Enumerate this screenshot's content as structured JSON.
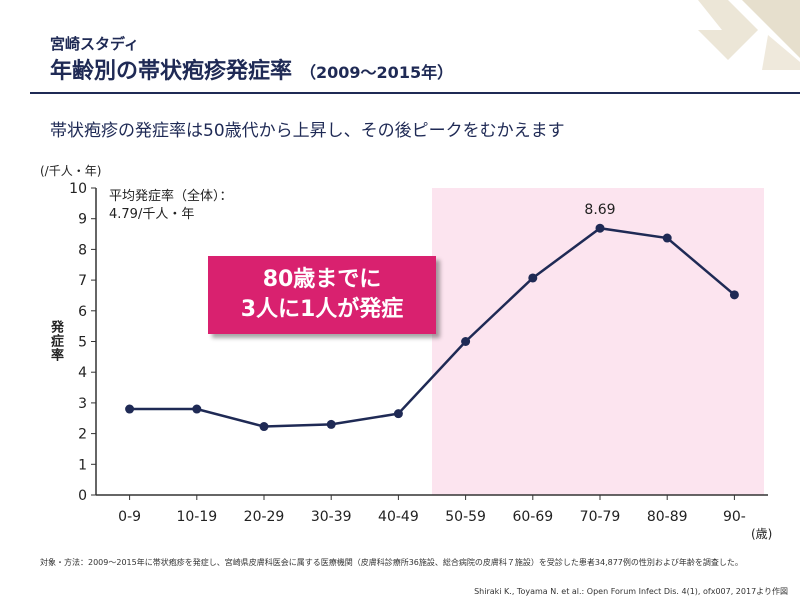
{
  "header": {
    "subtitle": "宮崎スタディ",
    "title": "年齢別の帯状疱疹発症率",
    "title_sub": "（2009～2015年）"
  },
  "lead_text": "帯状疱疹の発症率は50歳代から上昇し、その後ピークをむかえます",
  "callout": {
    "line1": "80歳までに",
    "line2": "3人に1人が発症",
    "color": "#d9216f"
  },
  "average_note": {
    "line1": "平均発症率（全体）：",
    "line2": "4.79/千人・年"
  },
  "footnote": "対象・方法：2009～2015年に帯状疱疹を発症し、宮崎県皮膚科医会に属する医療機関（皮膚科診療所36施設、総合病院の皮膚科７施設）を受診した患者34,877例の性別および年齢を調査した。",
  "citation": "Shiraki K., Toyama N. et al.: Open Forum Infect Dis. 4(1), ofx007, 2017より作図",
  "colors": {
    "navy": "#1f2a55",
    "highlight": "#fce4ef",
    "accent": "#d9216f"
  },
  "chart_data": {
    "type": "line",
    "categories": [
      "0-9",
      "10-19",
      "20-29",
      "30-39",
      "40-49",
      "50-59",
      "60-69",
      "70-79",
      "80-89",
      "90-"
    ],
    "values": [
      2.8,
      2.8,
      2.23,
      2.3,
      2.65,
      5.0,
      7.07,
      8.69,
      8.37,
      6.52
    ],
    "ylim": [
      0,
      10
    ],
    "yticks": [
      "0",
      "1",
      "2",
      "3",
      "4",
      "5",
      "6",
      "7",
      "8",
      "9",
      "10"
    ],
    "ylabel": "発症率",
    "y_unit": "(/千人・年)",
    "x_unit": "(歳)",
    "highlight_range": [
      "50-59",
      "90-"
    ],
    "data_labels": [
      {
        "category": "70-79",
        "text": "8.69"
      }
    ],
    "line_color": "#1f2a55",
    "grid": false
  }
}
